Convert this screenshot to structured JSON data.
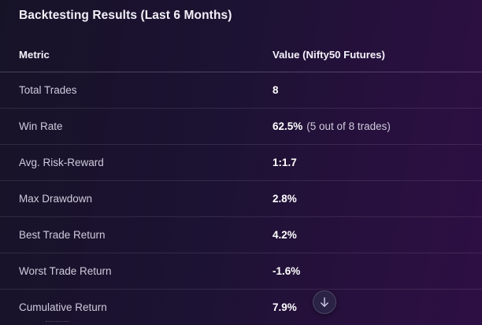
{
  "title": "Backtesting Results (Last 6 Months)",
  "table": {
    "headers": {
      "metric": "Metric",
      "value": "Value (Nifty50 Futures)"
    },
    "rows": [
      {
        "metric": "Total Trades",
        "value": "8",
        "note": ""
      },
      {
        "metric": "Win Rate",
        "value": "62.5%",
        "note": "(5 out of 8 trades)"
      },
      {
        "metric": "Avg. Risk-Reward",
        "value": "1:1.7",
        "note": ""
      },
      {
        "metric": "Max Drawdown",
        "value": "2.8%",
        "note": ""
      },
      {
        "metric": "Best Trade Return",
        "value": "4.2%",
        "note": ""
      },
      {
        "metric": "Worst Trade Return",
        "value": "-1.6%",
        "note": ""
      },
      {
        "metric": "Cumulative Return",
        "value": "7.9%",
        "note": ""
      }
    ]
  },
  "scroll_button": {
    "icon": "arrow-down-icon"
  },
  "colors": {
    "background_start": "#171327",
    "background_end": "#2e0f44",
    "text_primary": "#ffffff",
    "text_secondary": "#cfcbdc"
  }
}
